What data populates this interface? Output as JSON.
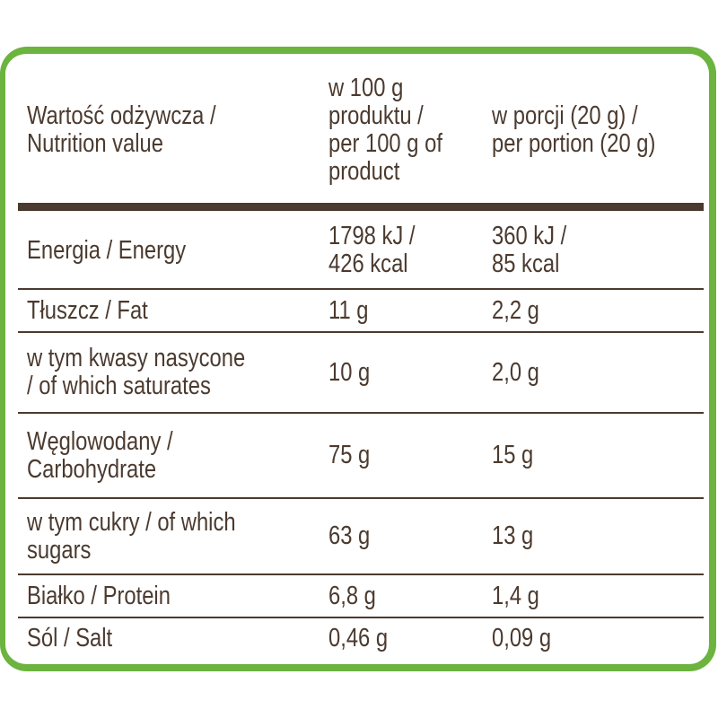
{
  "table": {
    "header": [
      [
        "Wartość odżywcza /",
        "Nutrition value"
      ],
      [
        "w 100 g",
        "produktu /",
        "per 100 g of",
        "product"
      ],
      [
        "w porcji (20 g) /",
        "per portion (20 g)"
      ]
    ],
    "rows": [
      [
        [
          "Energia / Energy"
        ],
        [
          "1798 kJ /",
          "426 kcal"
        ],
        [
          "360 kJ /",
          "85 kcal"
        ]
      ],
      [
        [
          "Tłuszcz / Fat"
        ],
        [
          "11 g"
        ],
        [
          "2,2 g"
        ]
      ],
      [
        [
          "w tym kwasy nasycone",
          "/ of which saturates"
        ],
        [
          "10 g"
        ],
        [
          "2,0 g"
        ]
      ],
      [
        [
          "Węglowodany /",
          "Carbohydrate"
        ],
        [
          "75 g"
        ],
        [
          "15 g"
        ]
      ],
      [
        [
          "w tym cukry / of which",
          "sugars"
        ],
        [
          "63 g"
        ],
        [
          "13 g"
        ]
      ],
      [
        [
          "Białko / Protein"
        ],
        [
          "6,8 g"
        ],
        [
          "1,4 g"
        ]
      ],
      [
        [
          "Sól / Salt"
        ],
        [
          "0,46 g"
        ],
        [
          "0,09 g"
        ]
      ]
    ]
  }
}
